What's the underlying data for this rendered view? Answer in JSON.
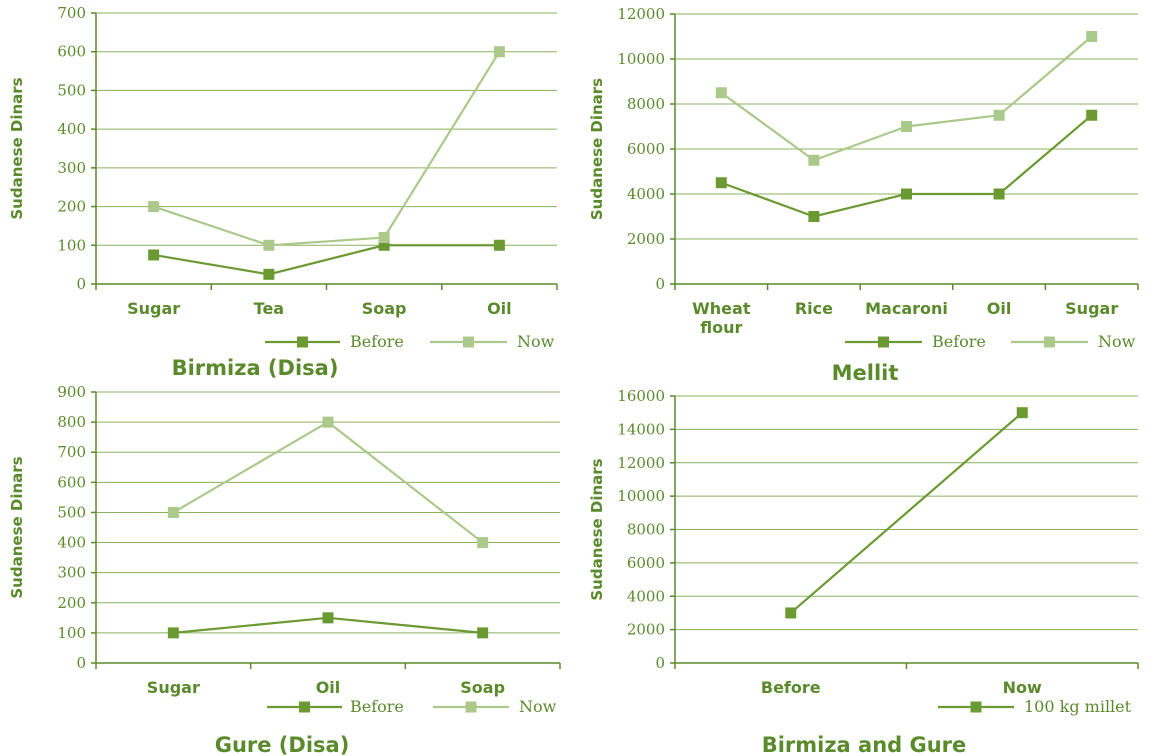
{
  "colors": {
    "before": "#6b9a32",
    "now": "#aac98a",
    "grid": "#8cb05e",
    "axis": "#5a8a2c",
    "text": "#5a8a2c"
  },
  "chart_data": [
    {
      "type": "line",
      "title": "Birmiza (Disa)",
      "ylabel": "Sudanese Dinars",
      "categories": [
        "Sugar",
        "Tea",
        "Soap",
        "Oil"
      ],
      "ylim": [
        0,
        700
      ],
      "yticks": [
        0,
        100,
        200,
        300,
        400,
        500,
        600,
        700
      ],
      "series": [
        {
          "name": "Before",
          "color_key": "before",
          "values": [
            75,
            25,
            100,
            100
          ]
        },
        {
          "name": "Now",
          "color_key": "now",
          "values": [
            200,
            100,
            120,
            600
          ]
        }
      ],
      "legend": "bottom-right"
    },
    {
      "type": "line",
      "title": "Mellit",
      "ylabel": "Sudanese Dinars",
      "categories": [
        "Wheat flour",
        "Rice",
        "Macaroni",
        "Oil",
        "Sugar"
      ],
      "ylim": [
        0,
        12000
      ],
      "yticks": [
        0,
        2000,
        4000,
        6000,
        8000,
        10000,
        12000
      ],
      "series": [
        {
          "name": "Before",
          "color_key": "before",
          "values": [
            4500,
            3000,
            4000,
            4000,
            7500
          ]
        },
        {
          "name": "Now",
          "color_key": "now",
          "values": [
            8500,
            5500,
            7000,
            7500,
            11000
          ]
        }
      ],
      "legend": "bottom-right"
    },
    {
      "type": "line",
      "title": "Gure (Disa)",
      "ylabel": "Sudanese Dinars",
      "categories": [
        "Sugar",
        "Oil",
        "Soap"
      ],
      "ylim": [
        0,
        900
      ],
      "yticks": [
        0,
        100,
        200,
        300,
        400,
        500,
        600,
        700,
        800,
        900
      ],
      "series": [
        {
          "name": "Before",
          "color_key": "before",
          "values": [
            100,
            150,
            100
          ]
        },
        {
          "name": "Now",
          "color_key": "now",
          "values": [
            500,
            800,
            400
          ]
        }
      ],
      "legend": "bottom-right"
    },
    {
      "type": "line",
      "title": "Birmiza and Gure",
      "ylabel": "Sudanese Dinars",
      "categories": [
        "Before",
        "Now"
      ],
      "ylim": [
        0,
        16000
      ],
      "yticks": [
        0,
        2000,
        4000,
        6000,
        8000,
        10000,
        12000,
        14000,
        16000
      ],
      "series": [
        {
          "name": "100 kg millet",
          "color_key": "before",
          "values": [
            3000,
            15000
          ]
        }
      ],
      "legend": "bottom-right"
    }
  ]
}
